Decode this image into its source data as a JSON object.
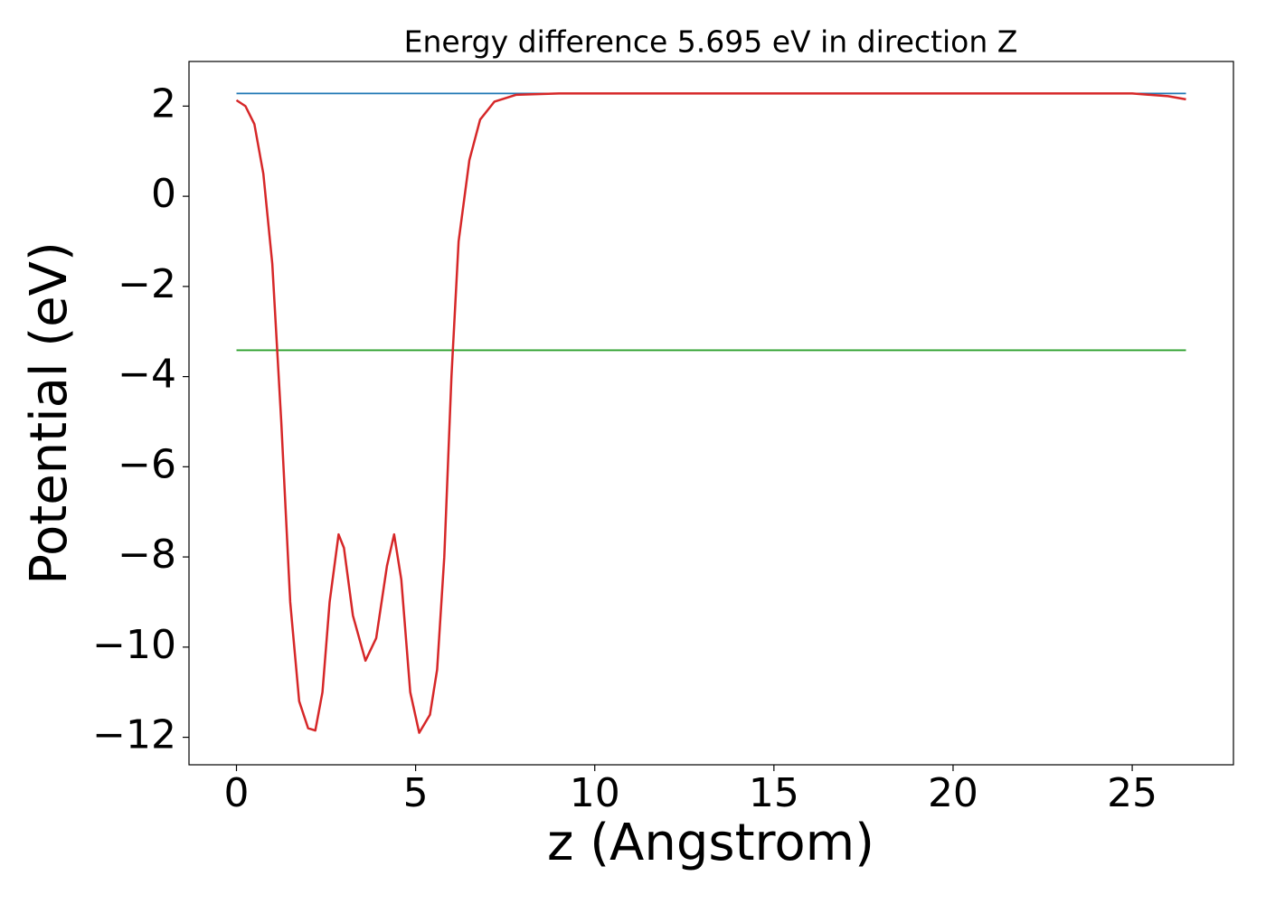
{
  "chart_data": {
    "type": "line",
    "title": "Energy difference 5.695 eV in direction Z",
    "x_label": "z (Angstrom)",
    "y_label": "Potential (eV)",
    "xlim": [
      -1.325,
      27.825
    ],
    "ylim": [
      -12.61,
      2.99
    ],
    "xticks": [
      0,
      5,
      10,
      15,
      20,
      25
    ],
    "yticks": [
      {
        "value": -12,
        "label": "−12"
      },
      {
        "value": -10,
        "label": "−10"
      },
      {
        "value": -8,
        "label": "−8"
      },
      {
        "value": -6,
        "label": "−6"
      },
      {
        "value": -4,
        "label": "−4"
      },
      {
        "value": -2,
        "label": "−2"
      },
      0,
      2
    ],
    "series": [
      {
        "color": "#1f77b4",
        "x": [
          0,
          26.5
        ],
        "values": [
          2.28,
          2.28
        ]
      },
      {
        "color": "#2ca02c",
        "x": [
          0,
          26.5
        ],
        "values": [
          -3.415,
          -3.415
        ]
      },
      {
        "color": "#d62728",
        "x": [
          0,
          0.25,
          0.5,
          0.75,
          1.0,
          1.25,
          1.5,
          1.75,
          2.0,
          2.2,
          2.4,
          2.6,
          2.85,
          3.0,
          3.25,
          3.6,
          3.9,
          4.2,
          4.4,
          4.6,
          4.85,
          5.1,
          5.4,
          5.6,
          5.8,
          6.0,
          6.2,
          6.5,
          6.8,
          7.2,
          7.8,
          9,
          15,
          20,
          25,
          26,
          26.5
        ],
        "values": [
          2.13,
          2.0,
          1.6,
          0.5,
          -1.5,
          -5,
          -9,
          -11.2,
          -11.8,
          -11.85,
          -11.0,
          -9,
          -7.5,
          -7.8,
          -9.3,
          -10.3,
          -9.8,
          -8.2,
          -7.5,
          -8.5,
          -11,
          -11.9,
          -11.5,
          -10.5,
          -8,
          -4,
          -1,
          0.8,
          1.7,
          2.1,
          2.25,
          2.28,
          2.28,
          2.28,
          2.28,
          2.22,
          2.15
        ]
      }
    ]
  }
}
